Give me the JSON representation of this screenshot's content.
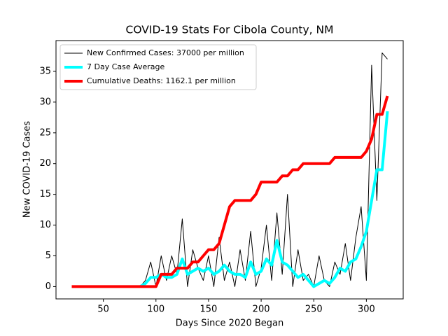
{
  "chart_data": {
    "type": "line",
    "title": "COVID-19 Stats For Cibola County, NM",
    "xlabel": "Days Since 2020 Began",
    "ylabel": "New COVID-19 Cases",
    "x": [
      20,
      25,
      30,
      35,
      40,
      45,
      50,
      55,
      60,
      65,
      70,
      75,
      80,
      85,
      90,
      95,
      100,
      105,
      110,
      115,
      120,
      125,
      130,
      135,
      140,
      145,
      150,
      155,
      160,
      165,
      170,
      175,
      180,
      185,
      190,
      195,
      200,
      205,
      210,
      215,
      220,
      225,
      230,
      235,
      240,
      245,
      250,
      255,
      260,
      265,
      270,
      275,
      280,
      285,
      290,
      295,
      300,
      305,
      310,
      315,
      320
    ],
    "series": [
      {
        "name": "New Confirmed Cases: 37000 per million",
        "color": "#000000",
        "width": 1,
        "values": [
          null,
          null,
          null,
          null,
          null,
          null,
          null,
          null,
          null,
          null,
          null,
          null,
          null,
          0,
          1,
          4,
          0,
          5,
          1,
          5,
          2,
          11,
          0,
          6,
          3,
          1,
          5,
          0,
          8,
          1,
          4,
          0,
          6,
          1,
          9,
          0,
          3,
          10,
          1,
          12,
          2,
          15,
          0,
          6,
          1,
          2,
          0,
          5,
          1,
          0,
          4,
          2,
          7,
          1,
          8,
          13,
          1,
          36,
          14,
          38,
          37
        ]
      },
      {
        "name": "7 Day Case Average",
        "color": "#00ffff",
        "width": 4,
        "values": [
          null,
          null,
          null,
          null,
          null,
          null,
          null,
          null,
          null,
          null,
          null,
          null,
          null,
          0,
          0.5,
          1.5,
          1.5,
          2,
          1.5,
          1.5,
          2,
          4.5,
          2,
          2.5,
          3,
          2.5,
          3,
          2,
          2.5,
          3.5,
          2.5,
          2,
          2,
          1.5,
          4,
          2,
          2.5,
          4.5,
          3.5,
          7.5,
          4,
          3.5,
          2.5,
          1.5,
          2,
          1,
          0,
          0.5,
          1,
          0.5,
          1.5,
          3,
          2.5,
          4,
          4.5,
          6.5,
          9,
          14,
          19,
          19,
          28.5
        ]
      },
      {
        "name": "Cumulative Deaths: 1162.1 per million",
        "color": "#ff0000",
        "width": 4,
        "values": [
          0,
          0,
          0,
          0,
          0,
          0,
          0,
          0,
          0,
          0,
          0,
          0,
          0,
          0,
          0,
          0,
          0,
          2,
          2,
          2,
          3,
          3,
          3,
          4,
          4,
          5,
          6,
          6,
          7,
          10,
          13,
          14,
          14,
          14,
          14,
          15,
          17,
          17,
          17,
          17,
          18,
          18,
          19,
          19,
          20,
          20,
          20,
          20,
          20,
          20,
          21,
          21,
          21,
          21,
          21,
          21,
          22,
          24,
          28,
          28,
          31
        ]
      }
    ],
    "xlim": [
      5,
      335
    ],
    "xticks": [
      50,
      100,
      150,
      200,
      250,
      300
    ],
    "ylim": [
      -2,
      40
    ],
    "yticks": [
      0,
      5,
      10,
      15,
      20,
      25,
      30,
      35
    ],
    "legend": "upper left"
  }
}
